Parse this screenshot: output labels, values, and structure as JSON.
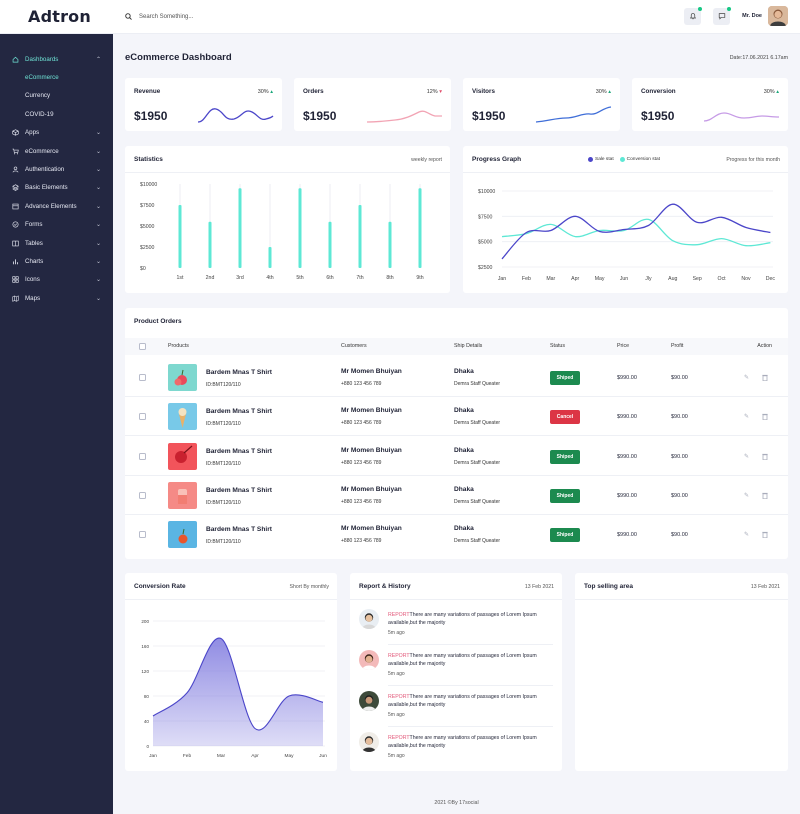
{
  "app": {
    "logo": "Adtron"
  },
  "topbar": {
    "search_placeholder": "Search Something...",
    "user_name": "Mr. Doe"
  },
  "sidebar": {
    "items": [
      {
        "label": "Dashboards",
        "icon": "home-icon",
        "expanded": true,
        "active": true,
        "children": [
          "eCommerce",
          "Currency",
          "COVID-19"
        ]
      },
      {
        "label": "Apps",
        "icon": "cube-icon"
      },
      {
        "label": "eCommerce",
        "icon": "cart-icon"
      },
      {
        "label": "Authentication",
        "icon": "user-icon"
      },
      {
        "label": "Basic Elements",
        "icon": "layers-icon"
      },
      {
        "label": "Advance Elements",
        "icon": "box-icon"
      },
      {
        "label": "Forms",
        "icon": "form-icon"
      },
      {
        "label": "Tables",
        "icon": "table-icon"
      },
      {
        "label": "Charts",
        "icon": "bar-chart-icon"
      },
      {
        "label": "Icons",
        "icon": "grid-icon"
      },
      {
        "label": "Maps",
        "icon": "map-icon"
      }
    ],
    "active_child": "eCommerce"
  },
  "page": {
    "title": "eCommerce Dashboard",
    "date": "Date:17.06.2021 6.17am"
  },
  "kpis": [
    {
      "title": "Revenue",
      "pct": "30%",
      "trend": "up",
      "value": "$1950",
      "color": "#4b46c9"
    },
    {
      "title": "Orders",
      "pct": "12%",
      "trend": "down",
      "value": "$1950",
      "color": "#f2a4b4"
    },
    {
      "title": "Visitors",
      "pct": "30%",
      "trend": "up",
      "value": "$1950",
      "color": "#3f6ed8"
    },
    {
      "title": "Conversion",
      "pct": "30%",
      "trend": "up",
      "value": "$1950",
      "color": "#c69be6"
    }
  ],
  "statistics": {
    "title": "Statistics",
    "subtitle": "weekly report"
  },
  "progress_graph": {
    "title": "Progress Graph",
    "subtitle": "Progress for this month",
    "legend": [
      "Sale stat",
      "Conversion stat"
    ]
  },
  "product_orders": {
    "title": "Product Orders",
    "columns": [
      "Products",
      "Customers",
      "Ship Details",
      "Status",
      "Price",
      "Profit",
      "Action"
    ],
    "rows": [
      {
        "name": "Bardem Mnas T Shirt",
        "id": "ID:BMT120/110",
        "customer": "Mr Momen Bhuiyan",
        "phone": "+880 123 456 789",
        "city": "Dhaka",
        "address": "Demra Staff Queater",
        "status": "Shiped",
        "price": "$990.00",
        "profit": "$90.00"
      },
      {
        "name": "Bardem Mnas T Shirt",
        "id": "ID:BMT120/110",
        "customer": "Mr Momen Bhuiyan",
        "phone": "+880 123 456 789",
        "city": "Dhaka",
        "address": "Demra Staff Queater",
        "status": "Cancel",
        "price": "$990.00",
        "profit": "$90.00"
      },
      {
        "name": "Bardem Mnas T Shirt",
        "id": "ID:BMT120/110",
        "customer": "Mr Momen Bhuiyan",
        "phone": "+880 123 456 789",
        "city": "Dhaka",
        "address": "Demra Staff Queater",
        "status": "Shiped",
        "price": "$990.00",
        "profit": "$90.00"
      },
      {
        "name": "Bardem Mnas T Shirt",
        "id": "ID:BMT120/110",
        "customer": "Mr Momen Bhuiyan",
        "phone": "+880 123 456 789",
        "city": "Dhaka",
        "address": "Demra Staff Queater",
        "status": "Shiped",
        "price": "$990.00",
        "profit": "$90.00"
      },
      {
        "name": "Bardem Mnas T Shirt",
        "id": "ID:BMT120/110",
        "customer": "Mr Momen Bhuiyan",
        "phone": "+880 123 456 789",
        "city": "Dhaka",
        "address": "Demra Staff Queater",
        "status": "Shiped",
        "price": "$990.00",
        "profit": "$90.00"
      }
    ],
    "status_colors": {
      "Shiped": "#1c8a4f",
      "Cancel": "#dc3545"
    }
  },
  "conversion_rate": {
    "title": "Conversion Rate",
    "subtitle": "Short By monthly"
  },
  "report_history": {
    "title": "Report & History",
    "date": "13 Feb 2021",
    "items": [
      {
        "tag": "REPORT",
        "text": "There are many variations of passages of Lorem Ipsum available,but the majority",
        "ago": "5m ago"
      },
      {
        "tag": "REPORT",
        "text": "There are many variations of passages of Lorem Ipsum available,but the majority",
        "ago": "5m ago"
      },
      {
        "tag": "REPORT",
        "text": "There are many variations of passages of Lorem Ipsum available,but the majority",
        "ago": "5m ago"
      },
      {
        "tag": "REPORT",
        "text": "There are many variations of passages of Lorem Ipsum available,but the majority",
        "ago": "5m ago"
      }
    ]
  },
  "top_selling": {
    "title": "Top selling area",
    "date": "13 Feb 2021"
  },
  "footer": {
    "text": "2021 ©By 17social"
  },
  "chart_data": [
    {
      "type": "bar",
      "title": "Statistics",
      "categories": [
        "1st",
        "2nd",
        "3rd",
        "4th",
        "5th",
        "6th",
        "7th",
        "8th",
        "9th"
      ],
      "values": [
        7500,
        5500,
        9500,
        2500,
        9500,
        5500,
        7500,
        5500,
        9500
      ],
      "y_ticks": [
        "$0",
        "$2500",
        "$5000",
        "$7500",
        "$10000"
      ],
      "ylim": [
        0,
        10000
      ],
      "color": "#5ee8d5"
    },
    {
      "type": "line",
      "title": "Progress Graph",
      "categories": [
        "Jan",
        "Feb",
        "Mar",
        "Apr",
        "May",
        "Jun",
        "Jly",
        "Aug",
        "Sep",
        "Oct",
        "Nov",
        "Dec"
      ],
      "y_ticks": [
        "$2500",
        "$5000",
        "$7500",
        "$10000"
      ],
      "ylim": [
        2500,
        10000
      ],
      "series": [
        {
          "name": "Sale stat",
          "color": "#4b46c9",
          "values": [
            3300,
            5900,
            6100,
            7500,
            6000,
            6200,
            6600,
            8700,
            6900,
            7400,
            6400,
            5900
          ]
        },
        {
          "name": "Conversion stat",
          "color": "#5ee8d5",
          "values": [
            5500,
            5800,
            6700,
            5500,
            6100,
            6100,
            7200,
            5100,
            4700,
            5300,
            4600,
            4900
          ]
        }
      ]
    },
    {
      "type": "area",
      "title": "Conversion Rate",
      "categories": [
        "Jan",
        "Feb",
        "Mar",
        "Apr",
        "May",
        "Jun"
      ],
      "values": [
        48,
        85,
        172,
        28,
        80,
        70
      ],
      "y_ticks": [
        "0",
        "40",
        "80",
        "120",
        "160",
        "200"
      ],
      "ylim": [
        0,
        200
      ],
      "color": "#7d78de"
    }
  ]
}
